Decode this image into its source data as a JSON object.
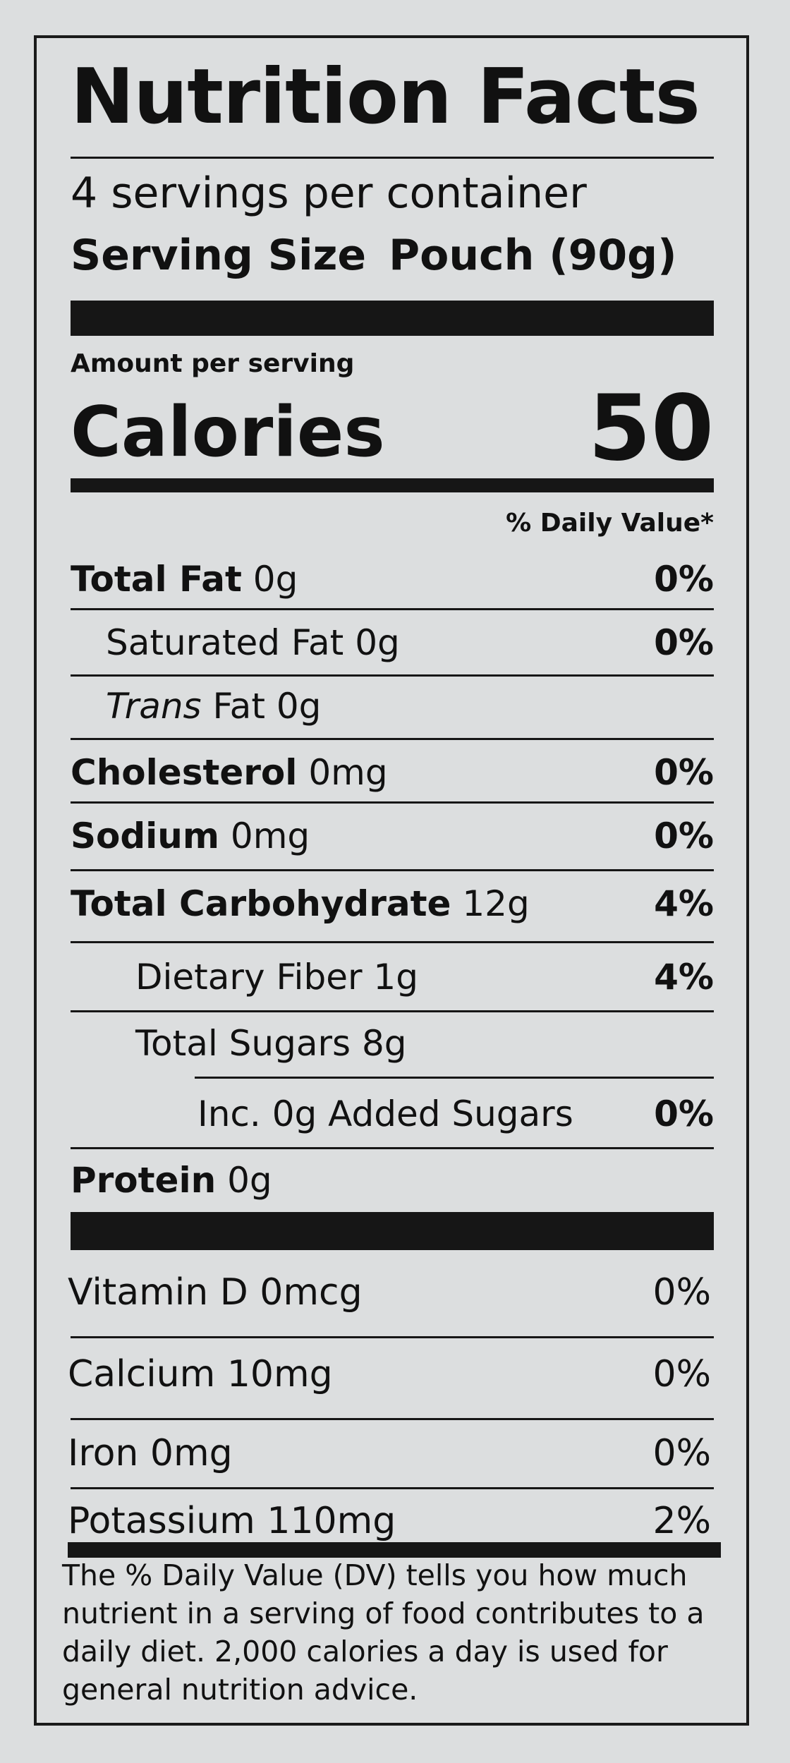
{
  "title": "Nutrition Facts",
  "servings_per_container": "4 servings per container",
  "serving_size": {
    "label": "Serving Size",
    "value": "Pouch (90g)"
  },
  "amount_per_serving": "Amount per serving",
  "calories": {
    "label": "Calories",
    "value": "50"
  },
  "daily_value_header": "% Daily Value*",
  "nutrients": [
    {
      "name": "Total Fat",
      "amount": "0g",
      "dv": "0%"
    },
    {
      "name": "Saturated Fat",
      "amount": "0g",
      "dv": "0%"
    },
    {
      "name_italic": "Trans",
      "name": "Fat",
      "amount": "0g",
      "dv": ""
    },
    {
      "name": "Cholesterol",
      "amount": "0mg",
      "dv": "0%"
    },
    {
      "name": "Sodium",
      "amount": "0mg",
      "dv": "0%"
    },
    {
      "name": "Total Carbohydrate",
      "amount": "12g",
      "dv": "4%"
    },
    {
      "name": "Dietary Fiber",
      "amount": "1g",
      "dv": "4%"
    },
    {
      "name": "Total Sugars",
      "amount": "8g",
      "dv": ""
    },
    {
      "name": "Inc. 0g Added Sugars",
      "amount": "",
      "dv": "0%"
    },
    {
      "name": "Protein",
      "amount": "0g",
      "dv": ""
    }
  ],
  "vitamins": [
    {
      "name": "Vitamin D",
      "amount": "0mcg",
      "dv": "0%"
    },
    {
      "name": "Calcium",
      "amount": "10mg",
      "dv": "0%"
    },
    {
      "name": "Iron",
      "amount": "0mg",
      "dv": "0%"
    },
    {
      "name": "Potassium",
      "amount": "110mg",
      "dv": "2%"
    }
  ],
  "footnote": "The % Daily Value (DV) tells you how much nutrient in a serving of food contributes to a daily diet. 2,000 calories a day is used for general nutrition advice."
}
